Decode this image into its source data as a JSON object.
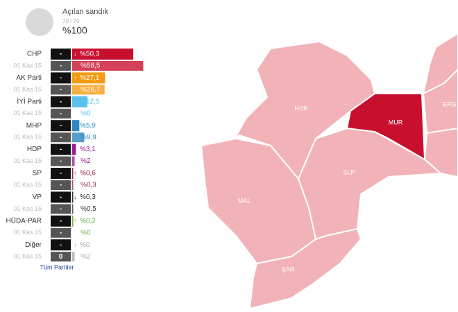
{
  "header": {
    "title": "Açılan sandık",
    "count": "70 / 70",
    "percent": "%100"
  },
  "parties": [
    {
      "name": "CHP",
      "trend": "↓",
      "seats": "-",
      "value": 50.3,
      "label": "%50,3",
      "prev_date": "01 Kas 15",
      "prev_seats": "-",
      "prev_value": 58.5,
      "prev_label": "%58,5",
      "color": "#c8102e"
    },
    {
      "name": "AK Parti",
      "trend": "↑",
      "seats": "-",
      "value": 27.1,
      "label": "%27,1",
      "prev_date": "01 Kas 15",
      "prev_seats": "-",
      "prev_value": 26.7,
      "prev_label": "%26,7",
      "color": "#f39c12"
    },
    {
      "name": "İYİ Parti",
      "trend": "↑",
      "seats": "-",
      "value": 12.5,
      "label": "%12,5",
      "prev_date": "01 Kas 15",
      "prev_seats": "-",
      "prev_value": 0,
      "prev_label": "%0",
      "color": "#5bc0eb"
    },
    {
      "name": "MHP",
      "trend": "↓",
      "seats": "-",
      "value": 5.9,
      "label": "%5,9",
      "prev_date": "01 Kas 15",
      "prev_seats": "-",
      "prev_value": 9.9,
      "prev_label": "%9,9",
      "color": "#2e86c1"
    },
    {
      "name": "HDP",
      "trend": "↑",
      "seats": "-",
      "value": 3.1,
      "label": "%3,1",
      "prev_date": "01 Kas 15",
      "prev_seats": "-",
      "prev_value": 2,
      "prev_label": "%2",
      "color": "#9b1b8e"
    },
    {
      "name": "SP",
      "trend": "↑",
      "seats": "-",
      "value": 0.6,
      "label": "%0,6",
      "prev_date": "01 Kas 15",
      "prev_seats": "-",
      "prev_value": 0.3,
      "prev_label": "%0,3",
      "color": "#9b2343"
    },
    {
      "name": "VP",
      "trend": "↓",
      "seats": "-",
      "value": 0.3,
      "label": "%0,3",
      "prev_date": "01 Kas 15",
      "prev_seats": "-",
      "prev_value": 0.5,
      "prev_label": "%0,5",
      "color": "#333333"
    },
    {
      "name": "HÜDA-PAR",
      "trend": "↑",
      "seats": "-",
      "value": 0.2,
      "label": "%0,2",
      "prev_date": "01 Kas 15",
      "prev_seats": "-",
      "prev_value": 0,
      "prev_label": "%0",
      "color": "#6ab04c"
    },
    {
      "name": "Diğer",
      "trend": "↓",
      "seats": "-",
      "value": 0,
      "label": "%0",
      "prev_date": "01 Kas 15",
      "prev_seats": "0",
      "prev_value": 2,
      "prev_label": "%2",
      "color": "#aaaaaa"
    }
  ],
  "link": "Tüm Partiler",
  "map": {
    "regions": [
      {
        "label": "HYR"
      },
      {
        "label": "MUR"
      },
      {
        "label": "ERG"
      },
      {
        "label": "SLP"
      },
      {
        "label": "MAL"
      },
      {
        "label": "ŞAR"
      }
    ]
  }
}
